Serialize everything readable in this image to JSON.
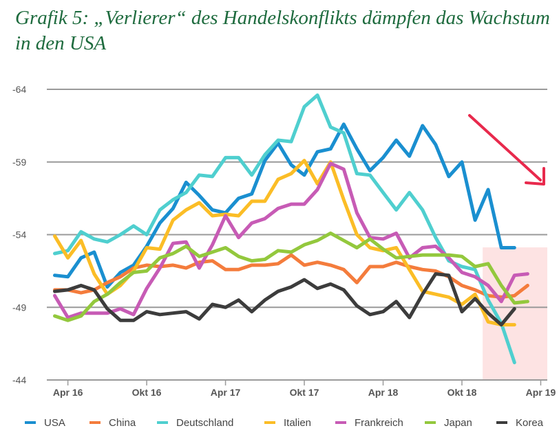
{
  "title": "Grafik 5: „Verlierer“ des Handelskonflikts dämpfen das Wachstum in den USA",
  "chart_data": {
    "type": "line",
    "title": "Grafik 5: „Verlierer“ des Handelskonflikts dämpfen das Wachstum in den USA",
    "y_ticks": [
      "-64",
      "-59",
      "-54",
      "-49",
      "-44"
    ],
    "ylim": [
      -64,
      -44
    ],
    "y_reversed": true,
    "x_ticks": [
      "Apr 16",
      "Okt 16",
      "Apr 17",
      "Okt 17",
      "Apr 18",
      "Okt 18",
      "Apr 19"
    ],
    "x_tick_index": [
      1,
      7,
      13,
      19,
      25,
      31,
      37
    ],
    "grid": true,
    "legend_position": "bottom",
    "highlight_region": {
      "x_from": 33,
      "x_to": 37,
      "color": "#fde3e3"
    },
    "trend_arrow": {
      "color": "#e8294c",
      "direction": "down-right"
    },
    "series": [
      {
        "name": "USA",
        "color": "#1a8fd0",
        "values": [
          -51.2,
          -51.1,
          -52.4,
          -52.8,
          -50.4,
          -51.4,
          -51.9,
          -53.2,
          -54.8,
          -55.8,
          -57.6,
          -56.7,
          -55.7,
          -55.5,
          -56.5,
          -56.8,
          -59.1,
          -60.3,
          -58.8,
          -58.1,
          -59.7,
          -59.9,
          -61.6,
          -59.9,
          -58.4,
          -59.3,
          -60.5,
          -59.4,
          -61.5,
          -60.2,
          -58.0,
          -59.0,
          -55.0,
          -57.1,
          -53.1,
          -53.1
        ]
      },
      {
        "name": "China",
        "color": "#f47c3c",
        "values": [
          -50.2,
          -50.2,
          -50.0,
          -50.2,
          -50.7,
          -51.1,
          -51.7,
          -51.9,
          -51.8,
          -51.9,
          -51.7,
          -52.1,
          -52.2,
          -51.6,
          -51.6,
          -51.9,
          -51.9,
          -52.0,
          -52.6,
          -51.9,
          -52.1,
          -51.9,
          -51.6,
          -50.7,
          -51.8,
          -51.8,
          -52.1,
          -51.8,
          -51.6,
          -51.5,
          -51.1,
          -50.5,
          -50.2,
          -49.8,
          -49.7,
          -49.8,
          -50.5
        ]
      },
      {
        "name": "Deutschland",
        "color": "#4fcfcf",
        "values": [
          -52.7,
          -52.9,
          -54.2,
          -53.7,
          -53.5,
          -54.0,
          -54.6,
          -54.0,
          -55.7,
          -56.4,
          -56.9,
          -58.1,
          -58.0,
          -59.3,
          -59.3,
          -58.1,
          -59.5,
          -60.5,
          -60.4,
          -62.8,
          -63.6,
          -61.4,
          -61.0,
          -58.2,
          -58.1,
          -56.9,
          -55.7,
          -56.9,
          -55.7,
          -53.8,
          -52.2,
          -51.8,
          -51.6,
          -49.5,
          -47.9,
          -45.2
        ]
      },
      {
        "name": "Italien",
        "color": "#fbbd26",
        "values": [
          -53.9,
          -52.4,
          -53.6,
          -51.3,
          -49.9,
          -50.5,
          -51.5,
          -53.1,
          -53.0,
          -55.0,
          -55.7,
          -56.2,
          -55.3,
          -55.4,
          -55.3,
          -56.3,
          -56.3,
          -57.8,
          -58.2,
          -59.1,
          -57.5,
          -59.0,
          -56.4,
          -54.0,
          -53.1,
          -52.9,
          -53.1,
          -51.6,
          -50.1,
          -49.9,
          -49.7,
          -49.2,
          -49.9,
          -48.0,
          -47.8,
          -47.8
        ]
      },
      {
        "name": "Frankreich",
        "color": "#c75bb5",
        "values": [
          -49.8,
          -48.3,
          -48.6,
          -48.6,
          -48.6,
          -48.9,
          -48.5,
          -50.3,
          -51.7,
          -53.4,
          -53.5,
          -51.7,
          -53.3,
          -55.3,
          -53.8,
          -54.8,
          -55.1,
          -55.8,
          -56.1,
          -56.1,
          -57.1,
          -58.9,
          -58.5,
          -55.5,
          -53.8,
          -53.7,
          -54.1,
          -52.4,
          -53.1,
          -53.2,
          -52.4,
          -51.4,
          -51.1,
          -50.5,
          -49.4,
          -51.2,
          -51.3
        ]
      },
      {
        "name": "Japan",
        "color": "#93c83d",
        "values": [
          -48.4,
          -48.1,
          -48.4,
          -49.4,
          -49.9,
          -50.7,
          -51.4,
          -51.5,
          -52.4,
          -52.7,
          -53.2,
          -52.5,
          -52.8,
          -53.1,
          -52.5,
          -52.2,
          -52.3,
          -52.9,
          -52.8,
          -53.3,
          -53.6,
          -54.1,
          -53.6,
          -53.1,
          -53.7,
          -53.0,
          -52.4,
          -52.5,
          -52.6,
          -52.6,
          -52.6,
          -52.5,
          -51.8,
          -52.0,
          -50.5,
          -49.3,
          -49.4
        ]
      },
      {
        "name": "Korea",
        "color": "#3c3c3c",
        "values": [
          -50.1,
          -50.2,
          -50.5,
          -50.2,
          -48.9,
          -48.1,
          -48.1,
          -48.7,
          -48.5,
          -48.6,
          -48.7,
          -48.2,
          -49.2,
          -49.0,
          -49.5,
          -48.7,
          -49.5,
          -50.1,
          -50.4,
          -50.9,
          -50.3,
          -50.6,
          -50.2,
          -49.1,
          -48.5,
          -48.7,
          -49.4,
          -48.3,
          -49.9,
          -51.3,
          -51.2,
          -48.7,
          -49.6,
          -48.6,
          -47.8,
          -48.9
        ]
      }
    ]
  }
}
